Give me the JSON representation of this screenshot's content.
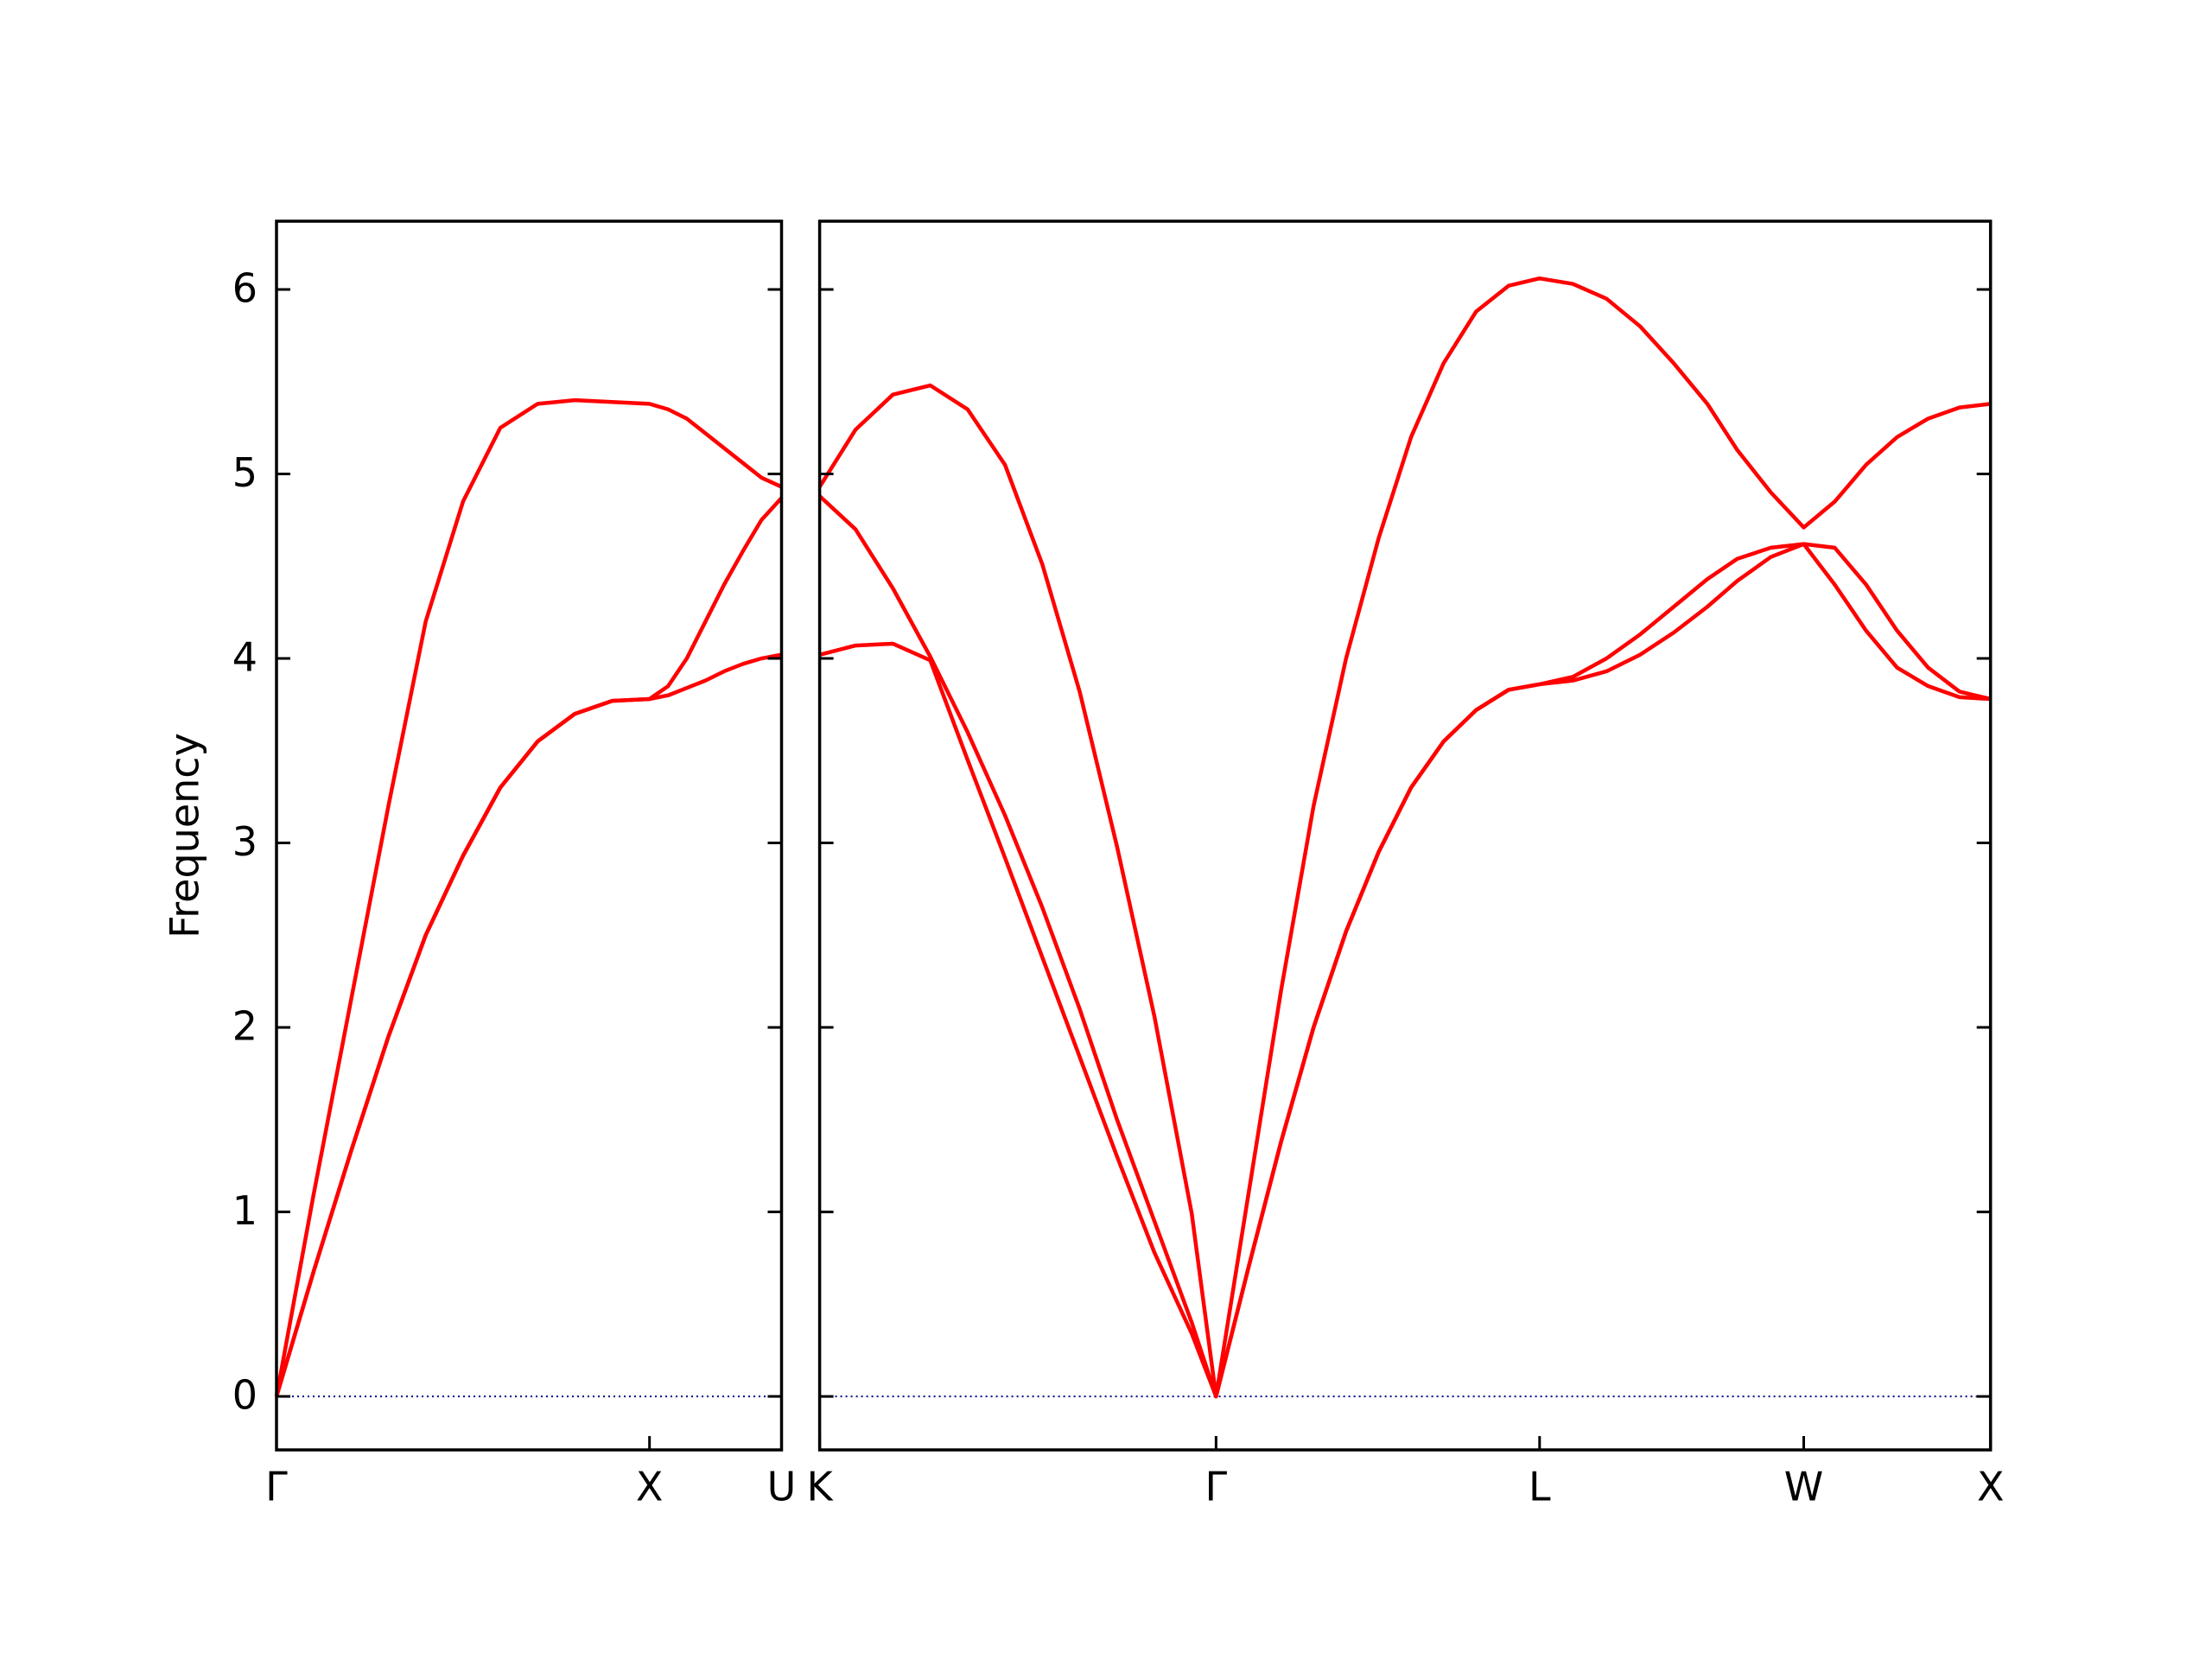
{
  "chart_data": [
    {
      "type": "line",
      "ylabel": "Frequency",
      "x": [
        0,
        0.1,
        0.2,
        0.3,
        0.4,
        0.5,
        0.6,
        0.7,
        0.8,
        0.9,
        1.0,
        1.05,
        1.1,
        1.15,
        1.2,
        1.25,
        1.3,
        1.354
      ],
      "series": [
        {
          "color": "#ff0000",
          "values": [
            0,
            0.68,
            1.33,
            1.95,
            2.5,
            2.93,
            3.3,
            3.55,
            3.7,
            3.77,
            3.78,
            3.8,
            3.84,
            3.88,
            3.93,
            3.97,
            4.0,
            4.02
          ]
        },
        {
          "color": "#ff0000",
          "values": [
            0,
            0.68,
            1.33,
            1.95,
            2.5,
            2.93,
            3.3,
            3.55,
            3.7,
            3.77,
            3.78,
            3.85,
            4.0,
            4.2,
            4.4,
            4.58,
            4.75,
            4.87
          ]
        },
        {
          "color": "#ff0000",
          "values": [
            0,
            1.1,
            2.15,
            3.2,
            4.2,
            4.85,
            5.25,
            5.38,
            5.4,
            5.39,
            5.38,
            5.35,
            5.3,
            5.22,
            5.14,
            5.06,
            4.98,
            4.93
          ]
        }
      ],
      "xlim": [
        0,
        1.354
      ],
      "xticks": [
        {
          "value": 0,
          "label": "Γ"
        },
        {
          "value": 1.0,
          "label": "X"
        },
        {
          "value": 1.354,
          "label": "U"
        }
      ],
      "ylim": [
        -0.29,
        6.37
      ],
      "yticks": [
        0,
        1,
        2,
        3,
        4,
        5,
        6
      ],
      "show_ytick_labels": true,
      "hline": 0,
      "hline_color": "#00008b",
      "grid": false
    },
    {
      "type": "line",
      "x": [
        1.354,
        1.45,
        1.55,
        1.65,
        1.75,
        1.85,
        1.95,
        2.05,
        2.15,
        2.25,
        2.35,
        2.415,
        2.502,
        2.589,
        2.676,
        2.763,
        2.85,
        2.937,
        3.024,
        3.111,
        3.198,
        3.281,
        3.37,
        3.46,
        3.55,
        3.64,
        3.73,
        3.81,
        3.9,
        3.988,
        4.071,
        4.155,
        4.238,
        4.321,
        4.405,
        4.488
      ],
      "series": [
        {
          "color": "#ff0000",
          "values": [
            4.02,
            4.07,
            4.08,
            3.99,
            3.45,
            2.92,
            2.38,
            1.84,
            1.3,
            0.78,
            0.34,
            0,
            0.7,
            1.38,
            2.0,
            2.52,
            2.95,
            3.3,
            3.55,
            3.72,
            3.83,
            3.86,
            3.88,
            3.93,
            4.02,
            4.14,
            4.28,
            4.42,
            4.55,
            4.62,
            4.4,
            4.15,
            3.95,
            3.85,
            3.79,
            3.78
          ]
        },
        {
          "color": "#ff0000",
          "values": [
            4.88,
            4.7,
            4.38,
            4.01,
            3.6,
            3.15,
            2.65,
            2.1,
            1.5,
            0.95,
            0.4,
            0,
            0.7,
            1.38,
            2.0,
            2.52,
            2.95,
            3.3,
            3.55,
            3.72,
            3.83,
            3.86,
            3.9,
            4.0,
            4.13,
            4.28,
            4.43,
            4.54,
            4.6,
            4.62,
            4.6,
            4.4,
            4.15,
            3.95,
            3.82,
            3.78
          ]
        },
        {
          "color": "#ff0000",
          "values": [
            4.93,
            5.24,
            5.43,
            5.48,
            5.35,
            5.05,
            4.51,
            3.82,
            2.98,
            2.06,
            0.99,
            0,
            1.1,
            2.2,
            3.2,
            4.0,
            4.65,
            5.2,
            5.6,
            5.88,
            6.02,
            6.06,
            6.03,
            5.95,
            5.8,
            5.6,
            5.38,
            5.13,
            4.9,
            4.71,
            4.85,
            5.05,
            5.2,
            5.3,
            5.36,
            5.38
          ]
        }
      ],
      "xlim": [
        1.354,
        4.488
      ],
      "xticks": [
        {
          "value": 1.354,
          "label": "K"
        },
        {
          "value": 2.415,
          "label": "Γ"
        },
        {
          "value": 3.281,
          "label": "L"
        },
        {
          "value": 3.988,
          "label": "W"
        },
        {
          "value": 4.488,
          "label": "X"
        }
      ],
      "ylim": [
        -0.29,
        6.37
      ],
      "yticks": [
        0,
        1,
        2,
        3,
        4,
        5,
        6
      ],
      "show_ytick_labels": false,
      "hline": 0,
      "hline_color": "#00008b",
      "grid": false
    }
  ]
}
